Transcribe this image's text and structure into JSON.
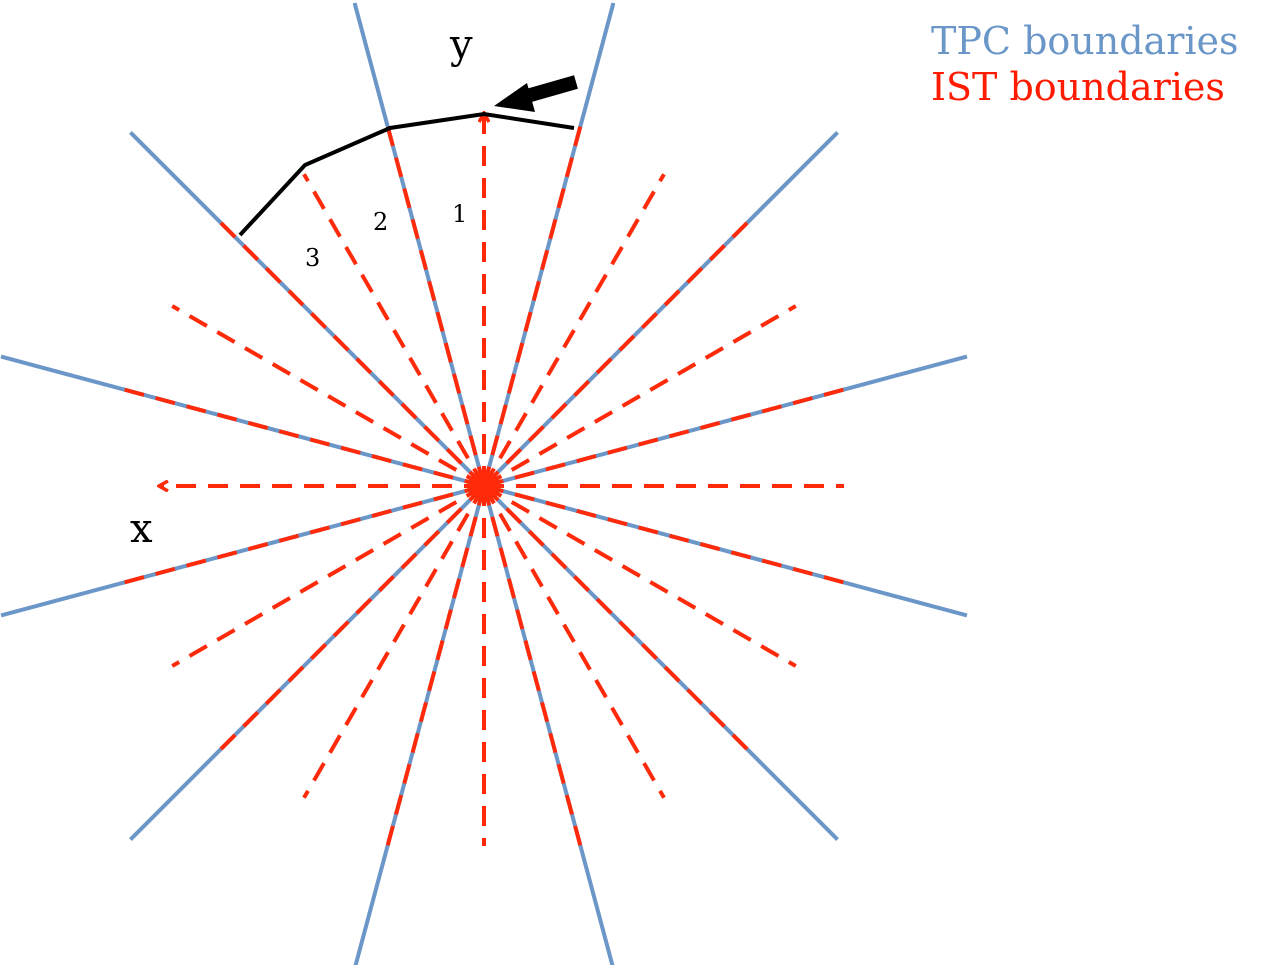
{
  "axes": {
    "x_label": "x",
    "y_label": "y"
  },
  "sector_labels": [
    "1",
    "2",
    "3"
  ],
  "legend": {
    "tpc": {
      "label": "TPC boundaries",
      "color": "#6b96c8"
    },
    "ist": {
      "label": "IST boundaries",
      "color": "#ff1a00"
    }
  },
  "colors": {
    "outline": "#000000",
    "tpc": "#6b96c8",
    "ist": "#ff2a0a"
  }
}
